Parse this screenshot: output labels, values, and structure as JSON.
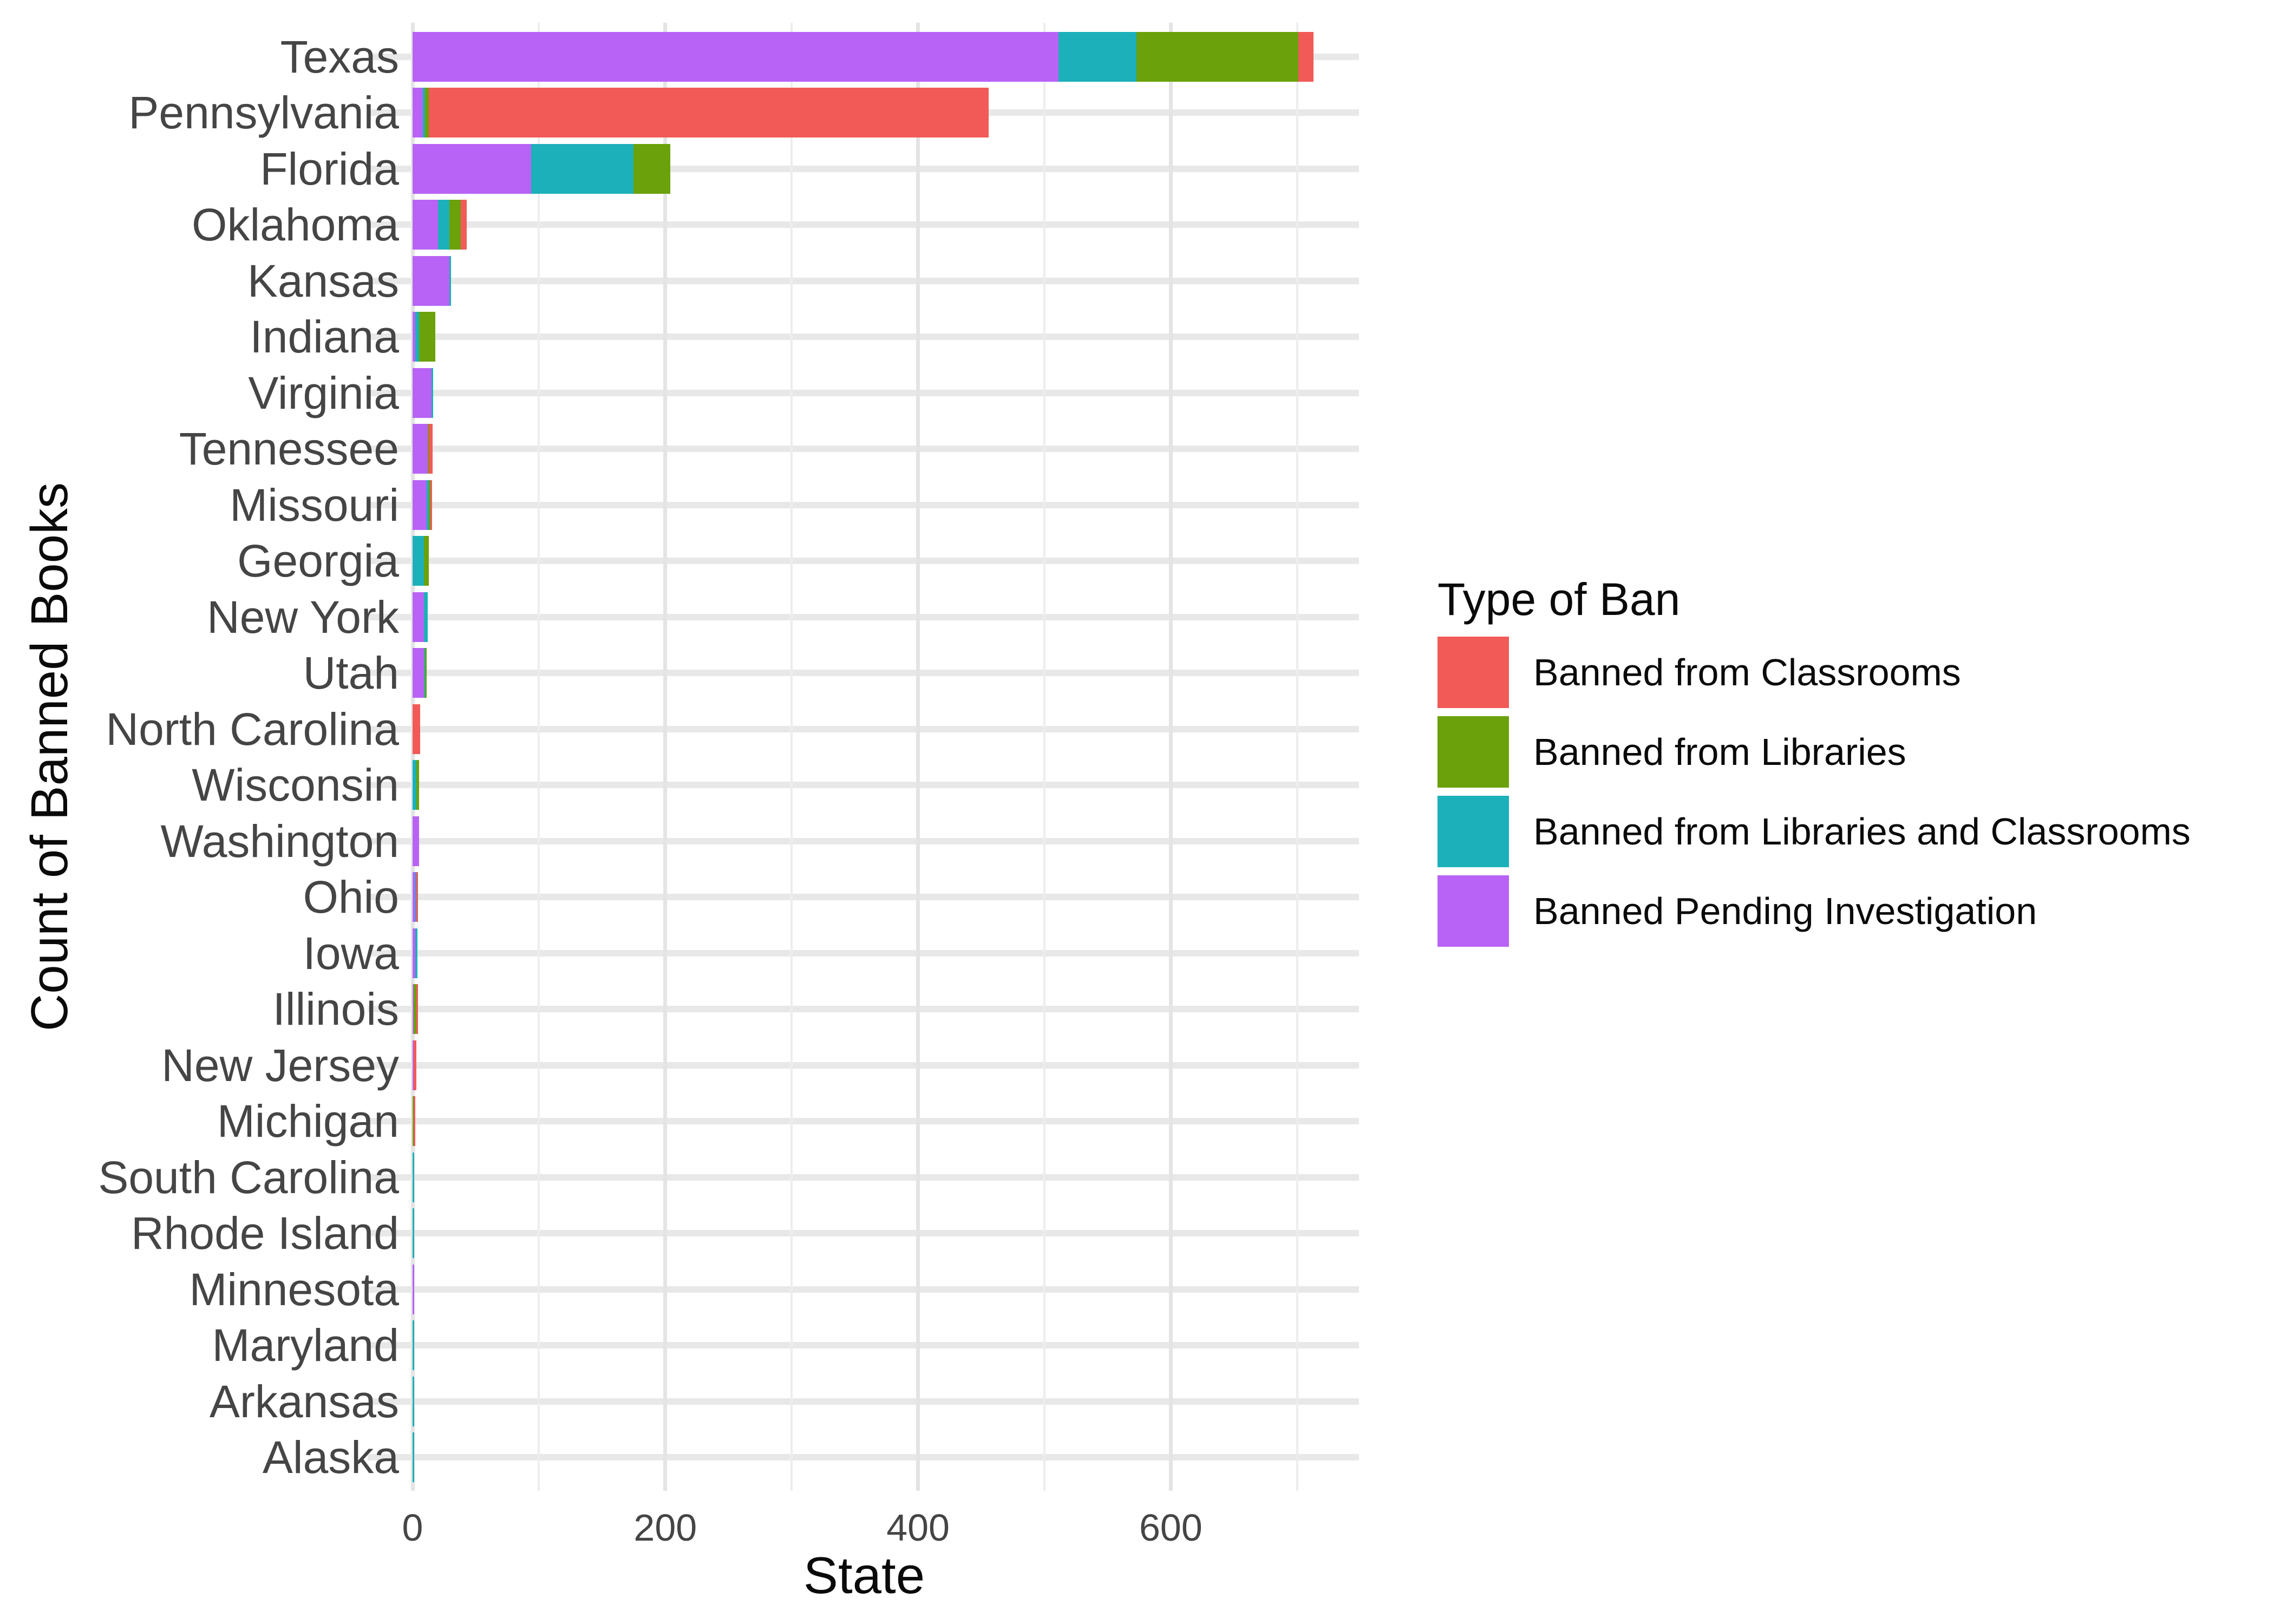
{
  "chart_data": {
    "type": "bar",
    "orientation": "horizontal",
    "stacked": true,
    "title": "",
    "xlabel": "State",
    "ylabel": "Count of Banned Books",
    "legend_title": "Type of Ban",
    "legend_position": "right",
    "grid": "major+minor",
    "x_ticks": [
      0,
      200,
      400,
      600
    ],
    "x_minor_gridlines": [
      100,
      300,
      500,
      700
    ],
    "axis_range": [
      0,
      749
    ],
    "categories": [
      "Texas",
      "Pennsylvania",
      "Florida",
      "Oklahoma",
      "Kansas",
      "Indiana",
      "Virginia",
      "Tennessee",
      "Missouri",
      "Georgia",
      "New York",
      "Utah",
      "North Carolina",
      "Wisconsin",
      "Washington",
      "Ohio",
      "Iowa",
      "Illinois",
      "New Jersey",
      "Michigan",
      "South Carolina",
      "Rhode Island",
      "Minnesota",
      "Maryland",
      "Arkansas",
      "Alaska"
    ],
    "series": [
      {
        "name": "Banned Pending Investigation",
        "color": "#B863F5",
        "values": [
          511,
          8,
          94,
          20,
          29,
          2,
          15,
          12,
          11,
          0,
          9,
          9,
          0,
          0,
          5,
          2,
          2,
          1,
          1,
          0,
          0,
          0,
          1,
          0,
          0,
          0
        ]
      },
      {
        "name": "Banned from Libraries and Classrooms",
        "color": "#1CB0BA",
        "values": [
          62,
          2,
          81,
          9,
          1,
          3,
          1,
          0,
          2,
          9,
          3,
          1,
          0,
          3,
          0,
          1,
          2,
          0,
          0,
          0,
          1,
          1,
          0,
          1,
          1,
          1
        ]
      },
      {
        "name": "Banned from Libraries",
        "color": "#6BA10A",
        "values": [
          128,
          3,
          29,
          9,
          0,
          13,
          0,
          1,
          1,
          4,
          0,
          1,
          0,
          2,
          0,
          0,
          0,
          2,
          0,
          1,
          0,
          0,
          0,
          0,
          0,
          0
        ]
      },
      {
        "name": "Banned from Classrooms",
        "color": "#F15A57",
        "values": [
          12,
          443,
          0,
          5,
          0,
          0,
          0,
          3,
          1,
          0,
          0,
          0,
          6,
          0,
          0,
          1,
          0,
          1,
          2,
          1,
          0,
          0,
          0,
          0,
          0,
          0
        ]
      }
    ],
    "legend": [
      {
        "label": "Banned from Classrooms",
        "color": "#F15A57"
      },
      {
        "label": "Banned from Libraries",
        "color": "#6BA10A"
      },
      {
        "label": "Banned from Libraries and Classrooms",
        "color": "#1CB0BA"
      },
      {
        "label": "Banned Pending Investigation",
        "color": "#B863F5"
      }
    ]
  }
}
